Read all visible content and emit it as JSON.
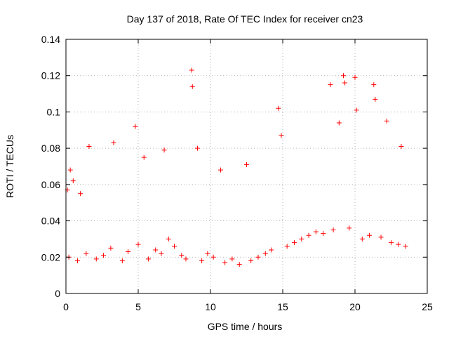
{
  "chart_data": {
    "type": "scatter",
    "title": "Day 137 of 2018, Rate Of TEC Index for receiver cn23",
    "xlabel": "GPS time / hours",
    "ylabel": "ROTI / TECUs",
    "xlim": [
      0,
      25
    ],
    "ylim": [
      0,
      0.14
    ],
    "x_ticks": [
      0,
      5,
      10,
      15,
      20,
      25
    ],
    "y_ticks": [
      0,
      0.02,
      0.04,
      0.06,
      0.08,
      0.1,
      0.12,
      0.14
    ],
    "grid": true,
    "marker": "plus",
    "series": [
      {
        "color": "#ff0000",
        "x": [
          0.1,
          0.3,
          0.5,
          1.0,
          1.6,
          3.3,
          4.8,
          5.4,
          6.8,
          8.7,
          8.75,
          9.1,
          10.7,
          12.5,
          14.7,
          14.9,
          18.3,
          18.9,
          19.2,
          19.3,
          20.0,
          20.1,
          21.3,
          21.4,
          22.2,
          23.2,
          0.2,
          0.8,
          1.4,
          2.1,
          2.6,
          3.1,
          3.9,
          4.3,
          5.0,
          5.7,
          6.2,
          6.6,
          7.1,
          7.5,
          8.0,
          8.3,
          9.4,
          9.8,
          10.2,
          11.0,
          11.5,
          12.0,
          12.8,
          13.3,
          13.8,
          14.2,
          15.3,
          15.8,
          16.3,
          16.8,
          17.3,
          17.8,
          18.5,
          19.6,
          20.5,
          21.0,
          21.8,
          22.5,
          23.0,
          23.5
        ],
        "y": [
          0.057,
          0.068,
          0.062,
          0.055,
          0.081,
          0.083,
          0.092,
          0.075,
          0.079,
          0.123,
          0.114,
          0.08,
          0.068,
          0.071,
          0.102,
          0.087,
          0.115,
          0.094,
          0.12,
          0.116,
          0.119,
          0.101,
          0.115,
          0.107,
          0.095,
          0.081,
          0.02,
          0.018,
          0.022,
          0.019,
          0.021,
          0.025,
          0.018,
          0.023,
          0.027,
          0.019,
          0.024,
          0.022,
          0.03,
          0.026,
          0.021,
          0.019,
          0.018,
          0.022,
          0.02,
          0.017,
          0.019,
          0.016,
          0.018,
          0.02,
          0.022,
          0.024,
          0.026,
          0.028,
          0.03,
          0.032,
          0.034,
          0.033,
          0.035,
          0.036,
          0.03,
          0.032,
          0.031,
          0.028,
          0.027,
          0.026
        ]
      }
    ]
  }
}
